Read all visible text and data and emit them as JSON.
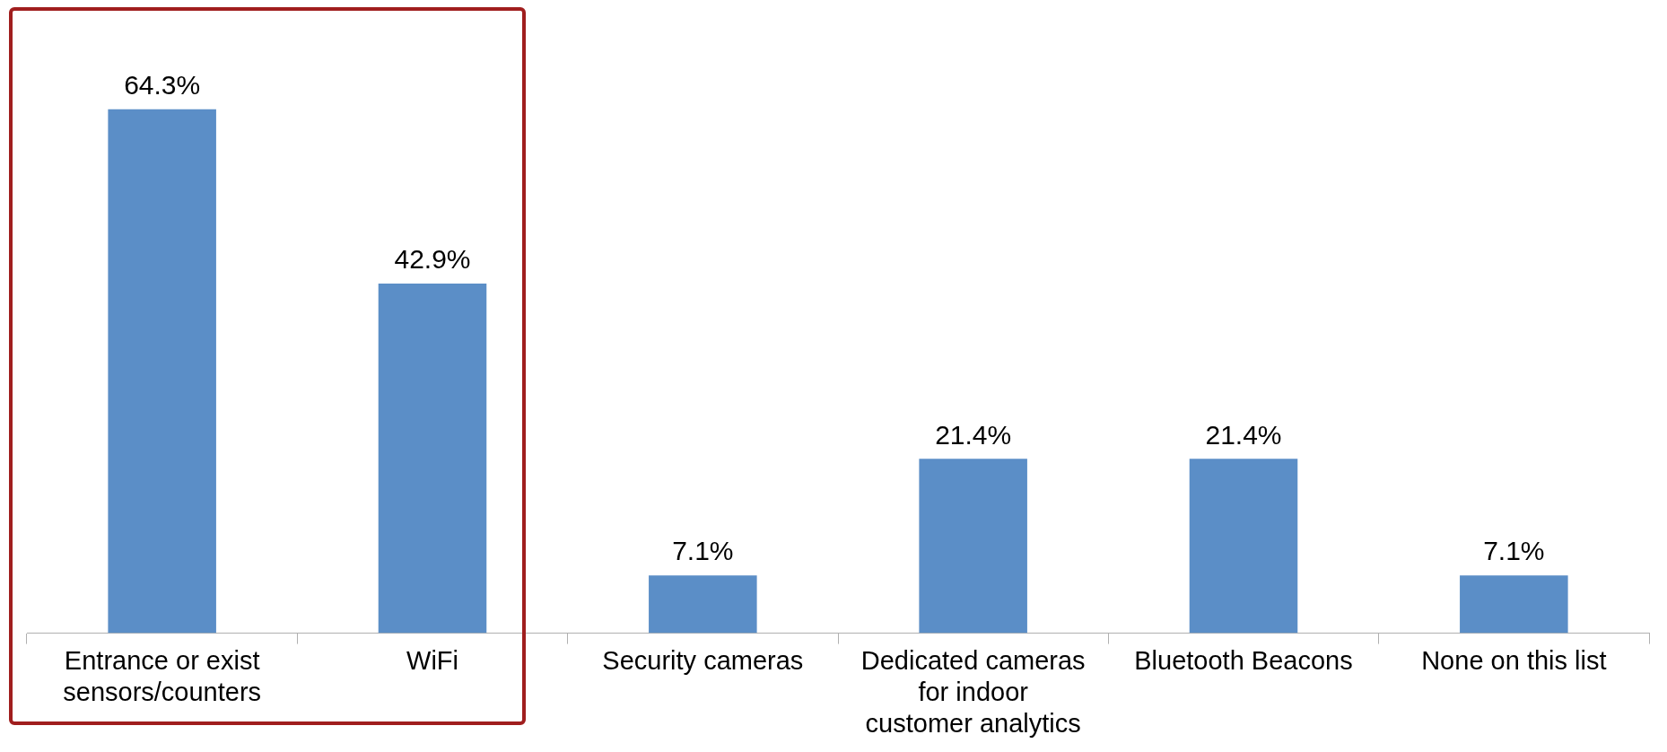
{
  "chart_data": {
    "type": "bar",
    "categories": [
      "Entrance or exist sensors/counters",
      "WiFi",
      "Security cameras",
      "Dedicated cameras for indoor customer analytics",
      "Bluetooth Beacons",
      "None on this list"
    ],
    "values": [
      64.3,
      42.9,
      7.1,
      21.4,
      21.4,
      7.1
    ],
    "value_labels": [
      "64.3%",
      "42.9%",
      "7.1%",
      "21.4%",
      "21.4%",
      "7.1%"
    ],
    "color": "#5b8ec7"
  }
}
